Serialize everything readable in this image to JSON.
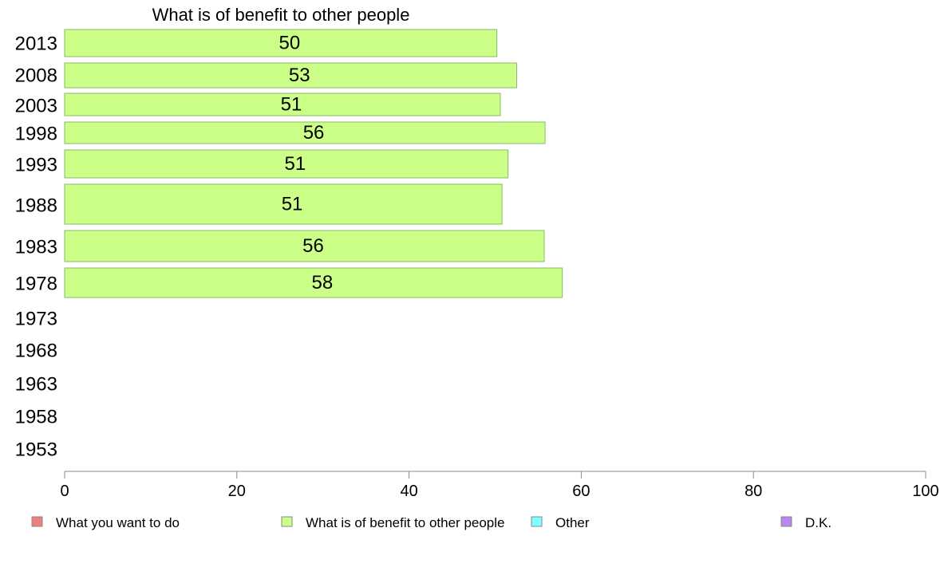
{
  "chart_data": {
    "type": "bar",
    "orientation": "horizontal",
    "stacked": true,
    "title": "What is of benefit to other people",
    "categories": [
      "2013",
      "2008",
      "2003",
      "1998",
      "1993",
      "1988",
      "1983",
      "1978",
      "1973",
      "1968",
      "1963",
      "1958",
      "1953"
    ],
    "series": [
      {
        "name": "What you want to do",
        "color": "#f08080",
        "values": [
          null,
          null,
          null,
          null,
          null,
          null,
          null,
          null,
          null,
          null,
          null,
          null,
          null
        ]
      },
      {
        "name": "What is of benefit to other people",
        "color": "#ccff88",
        "values": [
          50.2,
          52.5,
          50.6,
          55.8,
          51.5,
          50.8,
          55.7,
          57.8,
          null,
          null,
          null,
          null,
          null
        ]
      },
      {
        "name": "Other",
        "color": "#80ffff",
        "values": [
          null,
          null,
          null,
          null,
          null,
          null,
          null,
          null,
          null,
          null,
          null,
          null,
          null
        ]
      },
      {
        "name": "D.K.",
        "color": "#b888f0",
        "values": [
          null,
          null,
          null,
          null,
          null,
          null,
          null,
          null,
          null,
          null,
          null,
          null,
          null
        ]
      }
    ],
    "data_labels": [
      "50",
      "53",
      "51",
      "56",
      "51",
      "51",
      "56",
      "58",
      "",
      "",
      "",
      "",
      ""
    ],
    "xlim": [
      0,
      100
    ],
    "xticks": [
      "0",
      "20",
      "40",
      "60",
      "80",
      "100"
    ],
    "grid": false,
    "legend_position": "bottom"
  }
}
